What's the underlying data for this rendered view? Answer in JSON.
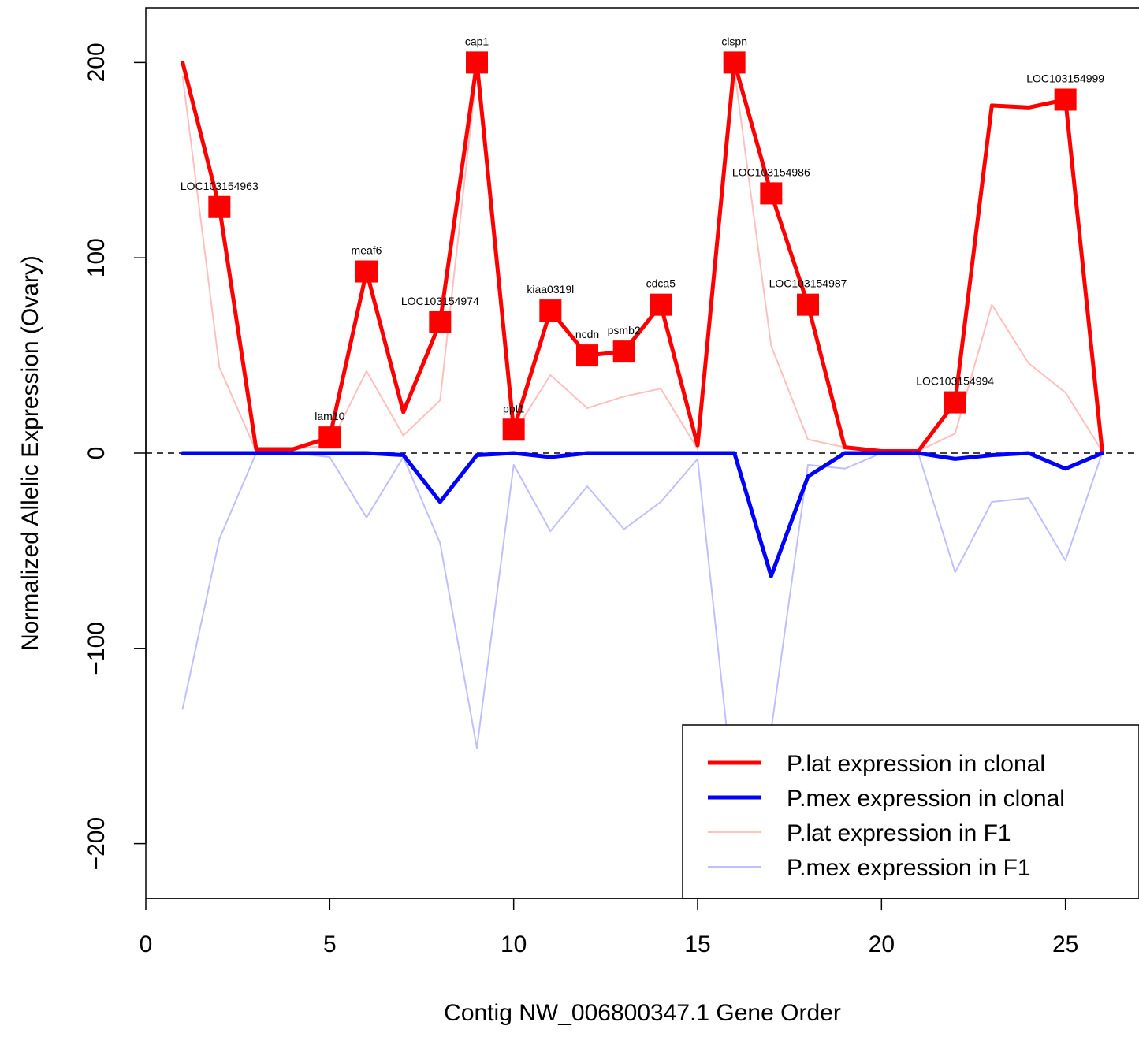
{
  "chart_data": {
    "type": "line",
    "title": "",
    "xlabel": "Contig NW_006800347.1 Gene Order",
    "ylabel": "Normalized Allelic Expression (Ovary)",
    "xlim": [
      0,
      27
    ],
    "ylim": [
      -228,
      228
    ],
    "x_ticks": [
      0,
      5,
      10,
      15,
      20,
      25
    ],
    "y_ticks": [
      -200,
      -100,
      0,
      100,
      200
    ],
    "grid": false,
    "reference_line": {
      "y": 0,
      "style": "dashed"
    },
    "legend_position": "bottom-right",
    "series": [
      {
        "name": "P.lat expression in clonal",
        "color": "#ff0000",
        "style": "thick",
        "x": [
          1,
          2,
          3,
          4,
          5,
          6,
          7,
          8,
          9,
          10,
          11,
          12,
          13,
          14,
          15,
          16,
          17,
          18,
          19,
          20,
          21,
          22,
          23,
          24,
          25,
          26
        ],
        "y": [
          200,
          126,
          2,
          2,
          8,
          93,
          21,
          67,
          200,
          12,
          73,
          50,
          52,
          76,
          4,
          200,
          133,
          76,
          3,
          1,
          1,
          26,
          178,
          177,
          181,
          1
        ]
      },
      {
        "name": "P.mex expression in clonal",
        "color": "#0000ff",
        "style": "thick",
        "x": [
          1,
          2,
          3,
          4,
          5,
          6,
          7,
          8,
          9,
          10,
          11,
          12,
          13,
          14,
          15,
          16,
          17,
          18,
          19,
          20,
          21,
          22,
          23,
          24,
          25,
          26
        ],
        "y": [
          0,
          0,
          0,
          0,
          0,
          0,
          -1,
          -25,
          -1,
          0,
          -2,
          0,
          0,
          0,
          0,
          0,
          -63,
          -12,
          0,
          0,
          0,
          -3,
          -1,
          0,
          -8,
          0
        ]
      },
      {
        "name": "P.lat expression in F1",
        "color": "#ffbfbf",
        "style": "thin",
        "x": [
          1,
          2,
          3,
          4,
          5,
          6,
          7,
          8,
          9,
          10,
          11,
          12,
          13,
          14,
          15,
          16,
          17,
          18,
          19,
          20,
          21,
          22,
          23,
          24,
          25,
          26
        ],
        "y": [
          193,
          44,
          1,
          2,
          4,
          42,
          9,
          27,
          196,
          10,
          40,
          23,
          29,
          33,
          2,
          196,
          55,
          7,
          3,
          1,
          1,
          10,
          76,
          46,
          31,
          1
        ]
      },
      {
        "name": "P.mex expression in F1",
        "color": "#bfbfff",
        "style": "thin",
        "x": [
          1,
          2,
          3,
          4,
          5,
          6,
          7,
          8,
          9,
          10,
          11,
          12,
          13,
          14,
          15,
          16,
          17,
          18,
          19,
          20,
          21,
          22,
          23,
          24,
          25,
          26
        ],
        "y": [
          -131,
          -44,
          0,
          0,
          -2,
          -33,
          -2,
          -46,
          -151,
          -6,
          -40,
          -17,
          -39,
          -25,
          -3,
          -178,
          -142,
          -6,
          -8,
          0,
          0,
          -61,
          -25,
          -23,
          -55,
          0
        ]
      }
    ],
    "markers": [
      {
        "x": 2,
        "y": 126,
        "label": "LOC103154963"
      },
      {
        "x": 5,
        "y": 8,
        "label": "lam10"
      },
      {
        "x": 6,
        "y": 93,
        "label": "meaf6"
      },
      {
        "x": 8,
        "y": 67,
        "label": "LOC103154974"
      },
      {
        "x": 9,
        "y": 200,
        "label": "cap1"
      },
      {
        "x": 10,
        "y": 12,
        "label": "ppt1"
      },
      {
        "x": 11,
        "y": 73,
        "label": "kiaa0319l"
      },
      {
        "x": 12,
        "y": 50,
        "label": "ncdn"
      },
      {
        "x": 13,
        "y": 52,
        "label": "psmb2"
      },
      {
        "x": 14,
        "y": 76,
        "label": "cdca5"
      },
      {
        "x": 16,
        "y": 200,
        "label": "clspn"
      },
      {
        "x": 17,
        "y": 133,
        "label": "LOC103154986"
      },
      {
        "x": 18,
        "y": 76,
        "label": "LOC103154987"
      },
      {
        "x": 22,
        "y": 26,
        "label": "LOC103154994"
      },
      {
        "x": 25,
        "y": 181,
        "label": "LOC103154999"
      }
    ],
    "marker_color": "#ff0000"
  }
}
